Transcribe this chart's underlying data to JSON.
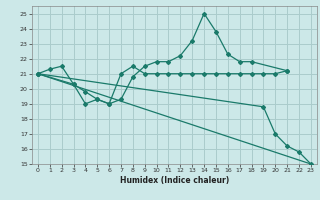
{
  "title": "",
  "xlabel": "Humidex (Indice chaleur)",
  "ylabel": "",
  "bg_color": "#cce8e8",
  "grid_color": "#aacccc",
  "line_color": "#1a7a6a",
  "xlim": [
    -0.5,
    23.5
  ],
  "ylim": [
    15,
    25.5
  ],
  "yticks": [
    15,
    16,
    17,
    18,
    19,
    20,
    21,
    22,
    23,
    24,
    25
  ],
  "xticks": [
    0,
    1,
    2,
    3,
    4,
    5,
    6,
    7,
    8,
    9,
    10,
    11,
    12,
    13,
    14,
    15,
    16,
    17,
    18,
    19,
    20,
    21,
    22,
    23
  ],
  "series": [
    {
      "x": [
        0,
        1,
        2,
        3,
        4,
        5,
        6,
        7,
        8,
        9,
        10,
        11,
        12,
        13,
        14,
        15,
        16,
        17,
        18,
        19,
        20,
        21
      ],
      "y": [
        21.0,
        21.3,
        21.5,
        20.3,
        19.0,
        19.3,
        19.0,
        21.0,
        21.5,
        21.0,
        21.0,
        21.0,
        21.0,
        21.0,
        21.0,
        21.0,
        21.0,
        21.0,
        21.0,
        21.0,
        21.0,
        21.2
      ],
      "marker": true
    },
    {
      "x": [
        0,
        3,
        4,
        5,
        6,
        7,
        8,
        9,
        10,
        11,
        12,
        13,
        14,
        15,
        16,
        17,
        18,
        21
      ],
      "y": [
        21.0,
        20.3,
        19.8,
        19.3,
        19.0,
        19.3,
        20.8,
        21.5,
        21.8,
        21.8,
        22.2,
        23.2,
        25.0,
        23.8,
        22.3,
        21.8,
        21.8,
        21.2
      ],
      "marker": true
    },
    {
      "x": [
        0,
        23
      ],
      "y": [
        21.0,
        15.0
      ],
      "marker": false
    },
    {
      "x": [
        0,
        19,
        20,
        21,
        22,
        23
      ],
      "y": [
        21.0,
        18.8,
        17.0,
        16.2,
        15.8,
        15.0
      ],
      "marker": true
    }
  ]
}
